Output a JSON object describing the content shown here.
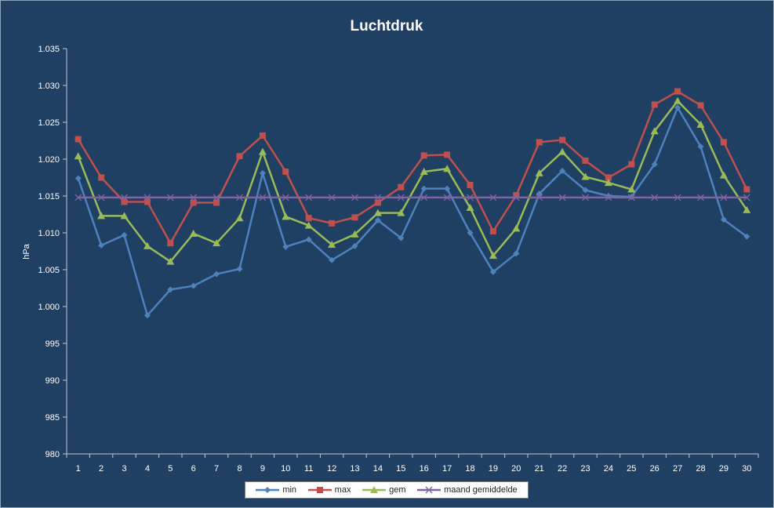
{
  "chart_data": {
    "type": "line",
    "title": "Luchtdruk",
    "xlabel": "",
    "ylabel": "hPa",
    "ylim": [
      980,
      1035
    ],
    "ytick_step": 5,
    "ytick_labels": [
      "980",
      "985",
      "990",
      "995",
      "1.000",
      "1.005",
      "1.010",
      "1.015",
      "1.020",
      "1.025",
      "1.030",
      "1.035"
    ],
    "categories": [
      "1",
      "2",
      "3",
      "4",
      "5",
      "6",
      "7",
      "8",
      "9",
      "10",
      "11",
      "12",
      "13",
      "14",
      "15",
      "16",
      "17",
      "18",
      "19",
      "20",
      "21",
      "22",
      "23",
      "24",
      "25",
      "26",
      "27",
      "28",
      "29",
      "30"
    ],
    "grid": false,
    "legend": "bottom",
    "series": [
      {
        "name": "min",
        "color": "#4f81bd",
        "marker": "diamond",
        "values": [
          1017.4,
          1008.3,
          1009.7,
          998.8,
          1002.3,
          1002.8,
          1004.4,
          1005.1,
          1018.1,
          1008.1,
          1009.1,
          1006.3,
          1008.2,
          1011.7,
          1009.3,
          1016.0,
          1016.0,
          1010.0,
          1004.7,
          1007.2,
          1015.3,
          1018.4,
          1015.8,
          1015.0,
          1014.9,
          1019.3,
          1027.0,
          1021.7,
          1011.8,
          1009.5
        ]
      },
      {
        "name": "max",
        "color": "#c0504d",
        "marker": "square",
        "values": [
          1022.7,
          1017.5,
          1014.2,
          1014.2,
          1008.6,
          1014.1,
          1014.1,
          1020.4,
          1023.2,
          1018.3,
          1012.0,
          1011.3,
          1012.1,
          1014.1,
          1016.2,
          1020.5,
          1020.6,
          1016.5,
          1010.2,
          1015.1,
          1022.3,
          1022.6,
          1019.8,
          1017.5,
          1019.3,
          1027.4,
          1029.2,
          1027.3,
          1022.3,
          1015.9
        ]
      },
      {
        "name": "gem",
        "color": "#9bbb59",
        "marker": "triangle",
        "values": [
          1020.4,
          1012.3,
          1012.3,
          1008.2,
          1006.1,
          1009.9,
          1008.6,
          1012.0,
          1021.0,
          1012.2,
          1011.0,
          1008.4,
          1009.8,
          1012.7,
          1012.7,
          1018.3,
          1018.7,
          1013.4,
          1006.9,
          1010.6,
          1018.1,
          1021.0,
          1017.6,
          1016.8,
          1015.9,
          1023.8,
          1027.9,
          1024.7,
          1017.8,
          1013.1
        ]
      },
      {
        "name": "maand gemiddelde",
        "color": "#8064a2",
        "marker": "x",
        "values": [
          1014.8,
          1014.8,
          1014.8,
          1014.8,
          1014.8,
          1014.8,
          1014.8,
          1014.8,
          1014.8,
          1014.8,
          1014.8,
          1014.8,
          1014.8,
          1014.8,
          1014.8,
          1014.8,
          1014.8,
          1014.8,
          1014.8,
          1014.8,
          1014.8,
          1014.8,
          1014.8,
          1014.8,
          1014.8,
          1014.8,
          1014.8,
          1014.8,
          1014.8,
          1014.8
        ]
      }
    ]
  }
}
